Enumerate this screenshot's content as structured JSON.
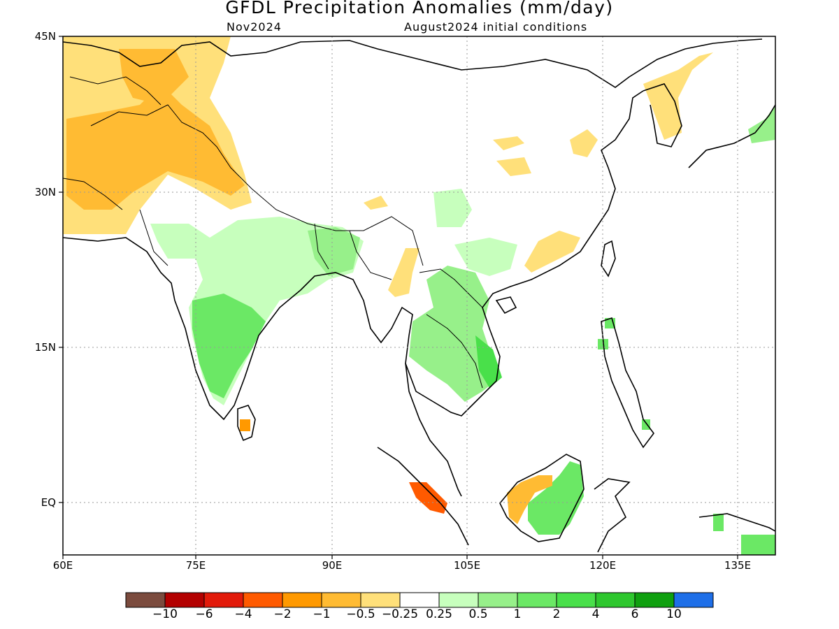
{
  "title": "GFDL Precipitation Anomalies (mm/day)",
  "subtitle_left": "Nov2024",
  "subtitle_right": "August2024 initial conditions",
  "lat_labels": [
    "45N",
    "30N",
    "15N",
    "EQ"
  ],
  "lon_labels": [
    "60E",
    "75E",
    "90E",
    "105E",
    "120E",
    "135E"
  ],
  "colorbar": {
    "colors": [
      "#7b4b3e",
      "#b30000",
      "#e21a0a",
      "#ff5a00",
      "#ff9900",
      "#ffbb33",
      "#ffe07a",
      "#ffffff",
      "#c7ffbd",
      "#97f08a",
      "#6be865",
      "#49e04a",
      "#2ec72e",
      "#0fa00f",
      "#1e6fe8"
    ],
    "labels": [
      "−10",
      "−6",
      "−4",
      "−2",
      "−1",
      "−0.5",
      "−0.25",
      "0.25",
      "0.5",
      "1",
      "2",
      "4",
      "6",
      "10"
    ]
  }
}
